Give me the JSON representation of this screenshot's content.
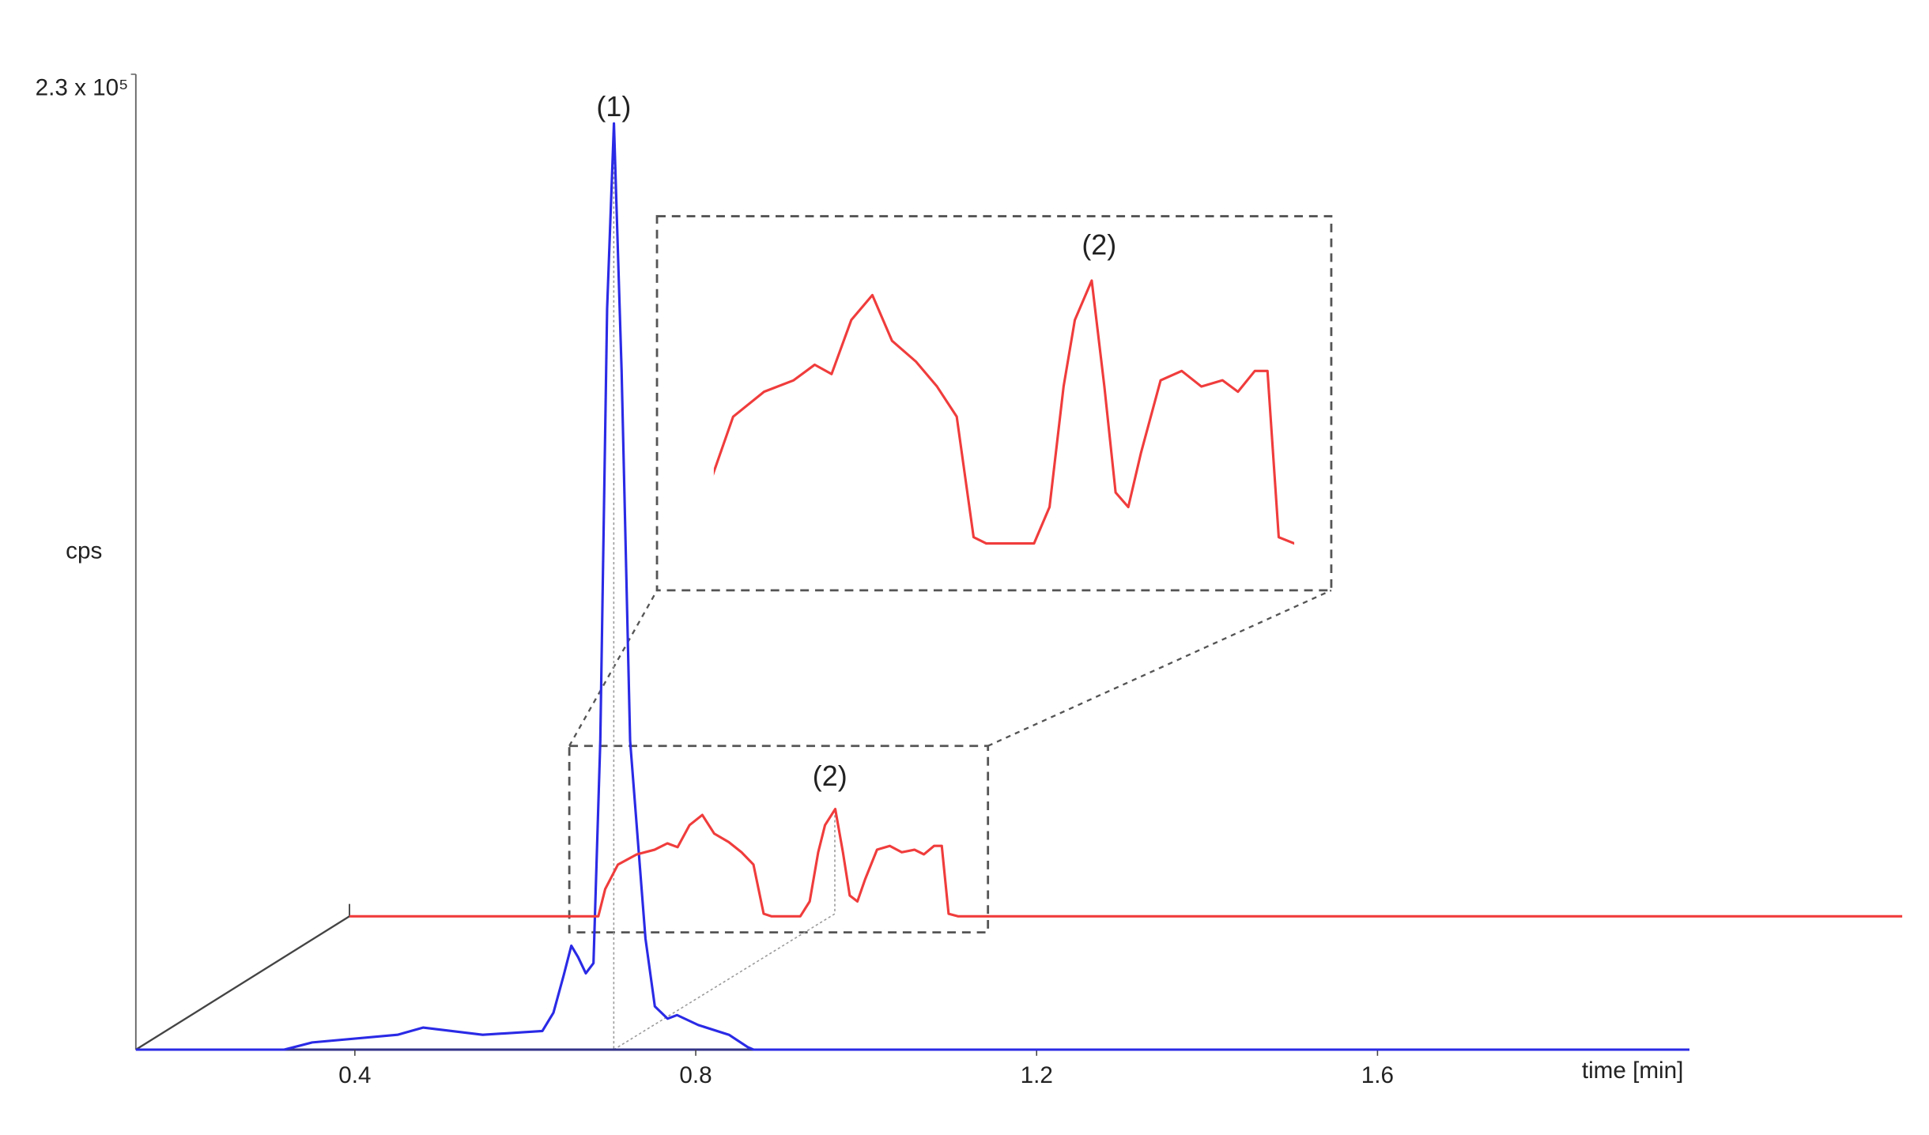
{
  "chart_data": {
    "type": "line",
    "xlabel": "time [min]",
    "ylabel": "cps",
    "xlim": [
      0.143,
      1.966
    ],
    "xticks": [
      0.4,
      0.8,
      1.2,
      1.6
    ],
    "ylim": [
      0,
      230000
    ],
    "yticks": [
      {
        "value": 230000,
        "label": "2.3 x 10⁵"
      }
    ],
    "annotations": [
      "(1)",
      "(2)",
      "(2)"
    ],
    "series": [
      {
        "color": "#2a2ae6",
        "x": [
          0.143,
          0.317,
          0.35,
          0.45,
          0.48,
          0.55,
          0.62,
          0.633,
          0.645,
          0.654,
          0.662,
          0.671,
          0.68,
          0.688,
          0.696,
          0.704,
          0.713,
          0.723,
          0.732,
          0.741,
          0.752,
          0.767,
          0.778,
          0.803,
          0.839,
          0.861,
          0.868,
          1.966
        ],
        "values": [
          0,
          0,
          1700,
          3500,
          5200,
          3500,
          4400,
          8700,
          17500,
          24500,
          21800,
          18000,
          20400,
          72800,
          174700,
          218400,
          160100,
          72800,
          49500,
          26200,
          10200,
          7300,
          8150,
          5800,
          3500,
          600,
          0,
          0
        ]
      },
      {
        "color": "#f03c3c",
        "x": [
          0.143,
          0.435,
          0.443,
          0.458,
          0.48,
          0.501,
          0.516,
          0.528,
          0.542,
          0.557,
          0.571,
          0.588,
          0.603,
          0.617,
          0.629,
          0.638,
          0.672,
          0.683,
          0.693,
          0.701,
          0.713,
          0.722,
          0.73,
          0.739,
          0.748,
          0.762,
          0.777,
          0.791,
          0.806,
          0.817,
          0.829,
          0.838,
          0.846,
          0.857,
          1.965
        ],
        "values": [
          0,
          0,
          6400,
          12200,
          14600,
          15700,
          17200,
          16300,
          21500,
          23900,
          19500,
          17500,
          15100,
          12200,
          600,
          0,
          0,
          3500,
          15100,
          21500,
          25300,
          15100,
          4900,
          3500,
          8700,
          15700,
          16600,
          15100,
          15700,
          14600,
          16600,
          16600,
          600,
          0,
          0
        ]
      }
    ]
  }
}
